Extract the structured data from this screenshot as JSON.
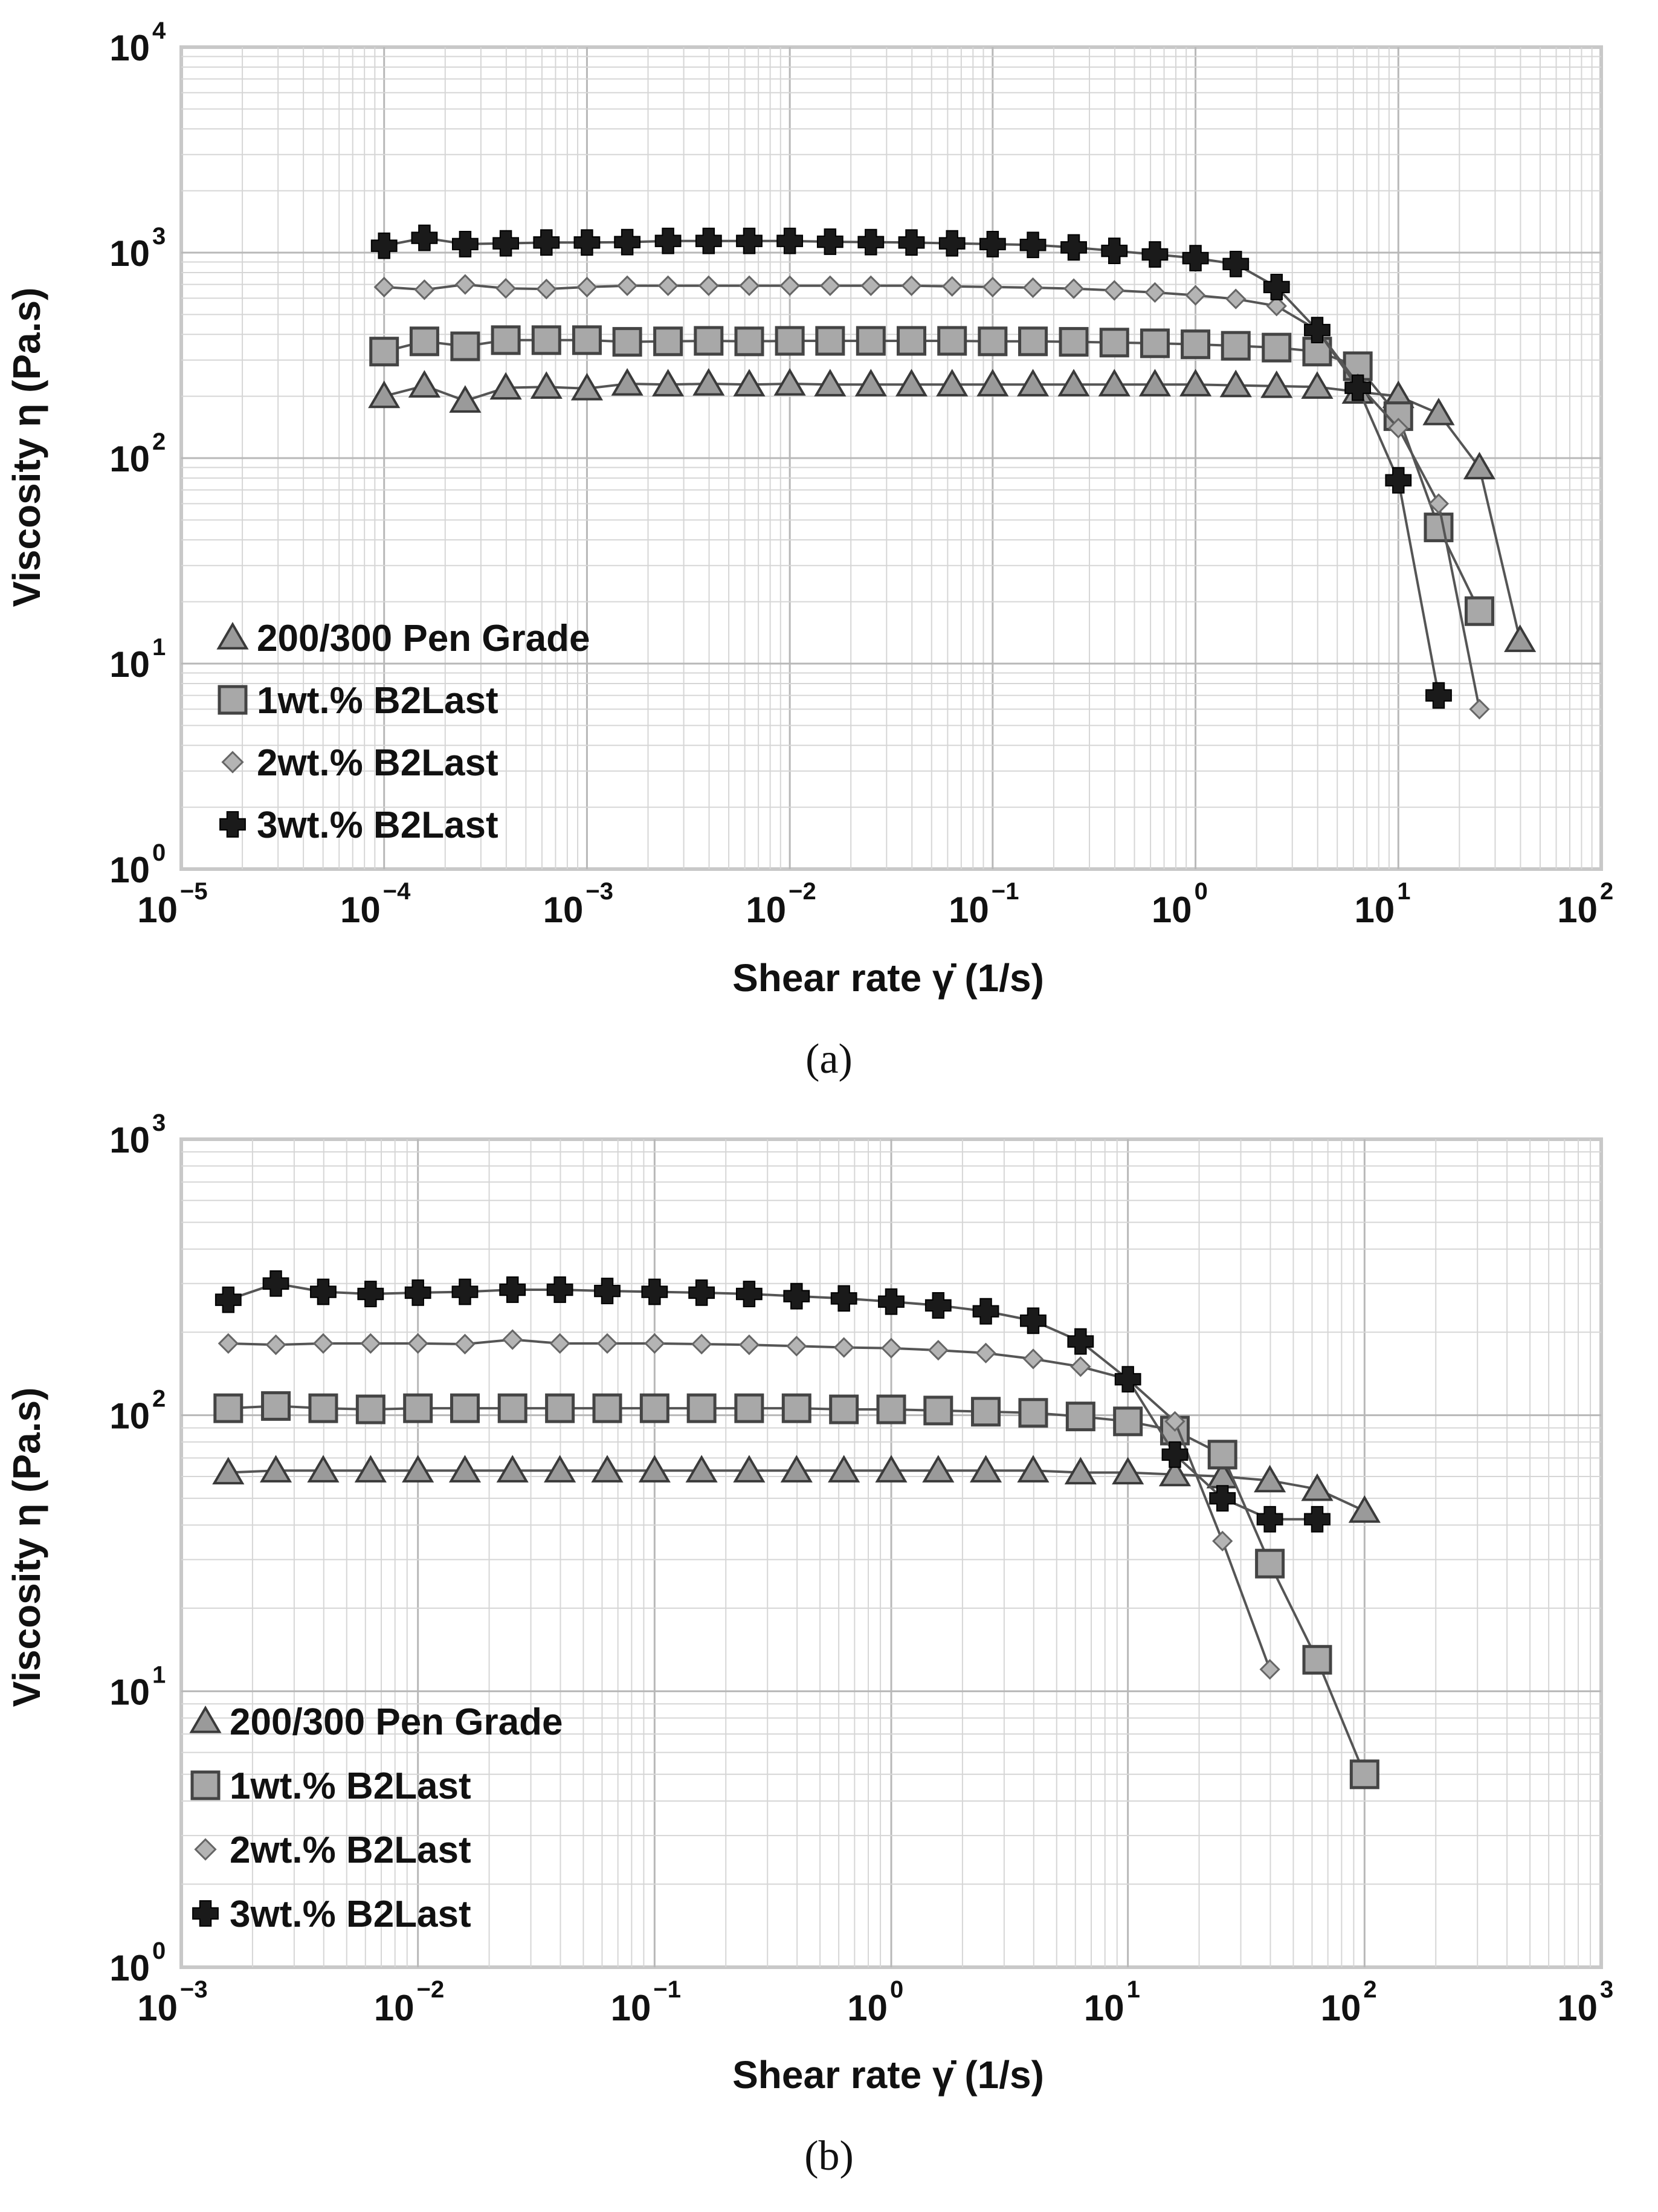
{
  "chart_data": [
    {
      "type": "line",
      "panel": "a",
      "caption": "(a)",
      "xlabel": "Shear rate γ̇ (1/s)",
      "ylabel": "Viscosity η (Pa.s)",
      "xscale": "log",
      "yscale": "log",
      "xlim_exp": [
        -5,
        2
      ],
      "ylim_exp": [
        0,
        4
      ],
      "grid": true,
      "legend_position": "bottom-left",
      "series": [
        {
          "name": "200/300 Pen Grade",
          "marker": "triangle",
          "x": [
            0.0001,
            0.000158,
            0.000251,
            0.000398,
            0.000631,
            0.001,
            0.00158,
            0.00251,
            0.00398,
            0.00631,
            0.01,
            0.0158,
            0.0251,
            0.0398,
            0.0631,
            0.1,
            0.158,
            0.251,
            0.398,
            0.631,
            1,
            1.58,
            2.51,
            3.98,
            6.31,
            10,
            15.8,
            25.1,
            39.8
          ],
          "y": [
            200,
            225,
            190,
            220,
            222,
            218,
            230,
            228,
            230,
            228,
            230,
            228,
            228,
            228,
            228,
            228,
            228,
            228,
            228,
            228,
            228,
            226,
            224,
            222,
            210,
            200,
            165,
            90,
            13
          ]
        },
        {
          "name": "1wt.% B2Last",
          "marker": "square",
          "x": [
            0.0001,
            0.000158,
            0.000251,
            0.000398,
            0.000631,
            0.001,
            0.00158,
            0.00251,
            0.00398,
            0.00631,
            0.01,
            0.0158,
            0.0251,
            0.0398,
            0.0631,
            0.1,
            0.158,
            0.251,
            0.398,
            0.631,
            1,
            1.58,
            2.51,
            3.98,
            6.31,
            10,
            15.8,
            25.1
          ],
          "y": [
            330,
            370,
            350,
            375,
            375,
            375,
            368,
            370,
            372,
            370,
            372,
            372,
            372,
            372,
            372,
            370,
            370,
            368,
            365,
            362,
            358,
            352,
            345,
            330,
            280,
            160,
            46,
            18
          ]
        },
        {
          "name": "2wt.% B2Last",
          "marker": "diamond",
          "x": [
            0.0001,
            0.000158,
            0.000251,
            0.000398,
            0.000631,
            0.001,
            0.00158,
            0.00251,
            0.00398,
            0.00631,
            0.01,
            0.0158,
            0.0251,
            0.0398,
            0.0631,
            0.1,
            0.158,
            0.251,
            0.398,
            0.631,
            1,
            1.58,
            2.51,
            3.98,
            6.31,
            10,
            15.8,
            25.1
          ],
          "y": [
            680,
            660,
            700,
            670,
            665,
            680,
            690,
            690,
            690,
            690,
            690,
            690,
            690,
            690,
            685,
            680,
            675,
            668,
            655,
            640,
            620,
            595,
            550,
            420,
            230,
            140,
            60,
            6
          ]
        },
        {
          "name": "3wt.% B2Last",
          "marker": "cross",
          "x": [
            0.0001,
            0.000158,
            0.000251,
            0.000398,
            0.000631,
            0.001,
            0.00158,
            0.00251,
            0.00398,
            0.00631,
            0.01,
            0.0158,
            0.0251,
            0.0398,
            0.0631,
            0.1,
            0.158,
            0.251,
            0.398,
            0.631,
            1,
            1.58,
            2.51,
            3.98,
            6.31,
            10,
            15.8
          ],
          "y": [
            1080,
            1180,
            1100,
            1110,
            1120,
            1120,
            1125,
            1140,
            1140,
            1140,
            1140,
            1130,
            1125,
            1120,
            1110,
            1100,
            1090,
            1060,
            1020,
            980,
            940,
            880,
            680,
            420,
            220,
            78,
            7
          ]
        }
      ]
    },
    {
      "type": "line",
      "panel": "b",
      "caption": "(b)",
      "xlabel": "Shear rate γ̇ (1/s)",
      "ylabel": "Viscosity η (Pa.s)",
      "xscale": "log",
      "yscale": "log",
      "xlim_exp": [
        -3,
        3
      ],
      "ylim_exp": [
        0,
        3
      ],
      "grid": true,
      "legend_position": "bottom-left",
      "series": [
        {
          "name": "200/300 Pen Grade",
          "marker": "triangle",
          "x": [
            0.00158,
            0.00251,
            0.00398,
            0.00631,
            0.01,
            0.0158,
            0.0251,
            0.0398,
            0.0631,
            0.1,
            0.158,
            0.251,
            0.398,
            0.631,
            1,
            1.58,
            2.51,
            3.98,
            6.31,
            10,
            15.8,
            25.1,
            39.8,
            63.1,
            100
          ],
          "y": [
            62,
            63,
            63,
            63,
            63,
            63,
            63,
            63,
            63,
            63,
            63,
            63,
            63,
            63,
            63,
            63,
            63,
            63,
            62,
            62,
            61,
            60,
            58,
            54,
            45
          ]
        },
        {
          "name": "1wt.% B2Last",
          "marker": "square",
          "x": [
            0.00158,
            0.00251,
            0.00398,
            0.00631,
            0.01,
            0.0158,
            0.0251,
            0.0398,
            0.0631,
            0.1,
            0.158,
            0.251,
            0.398,
            0.631,
            1,
            1.58,
            2.51,
            3.98,
            6.31,
            10,
            15.8,
            25.1,
            39.8,
            63.1,
            100
          ],
          "y": [
            106,
            108,
            106,
            105,
            106,
            106,
            106,
            106,
            106,
            106,
            106,
            106,
            106,
            105,
            105,
            104,
            103,
            102,
            99,
            95,
            88,
            72,
            29,
            13,
            5
          ]
        },
        {
          "name": "2wt.% B2Last",
          "marker": "diamond",
          "x": [
            0.00158,
            0.00251,
            0.00398,
            0.00631,
            0.01,
            0.0158,
            0.0251,
            0.0398,
            0.0631,
            0.1,
            0.158,
            0.251,
            0.398,
            0.631,
            1,
            1.58,
            2.51,
            3.98,
            6.31,
            10,
            15.8,
            25.1,
            39.8
          ],
          "y": [
            182,
            180,
            182,
            182,
            182,
            181,
            188,
            182,
            182,
            182,
            181,
            180,
            178,
            176,
            175,
            172,
            168,
            160,
            150,
            135,
            95,
            35,
            12
          ]
        },
        {
          "name": "3wt.% B2Last",
          "marker": "cross",
          "x": [
            0.00158,
            0.00251,
            0.00398,
            0.00631,
            0.01,
            0.0158,
            0.0251,
            0.0398,
            0.0631,
            0.1,
            0.158,
            0.251,
            0.398,
            0.631,
            1,
            1.58,
            2.51,
            3.98,
            6.31,
            10,
            15.8,
            25.1,
            39.8,
            63.1
          ],
          "y": [
            262,
            300,
            280,
            275,
            278,
            280,
            285,
            285,
            282,
            280,
            278,
            275,
            270,
            265,
            258,
            250,
            238,
            220,
            185,
            135,
            72,
            50,
            42,
            42
          ]
        }
      ]
    }
  ]
}
